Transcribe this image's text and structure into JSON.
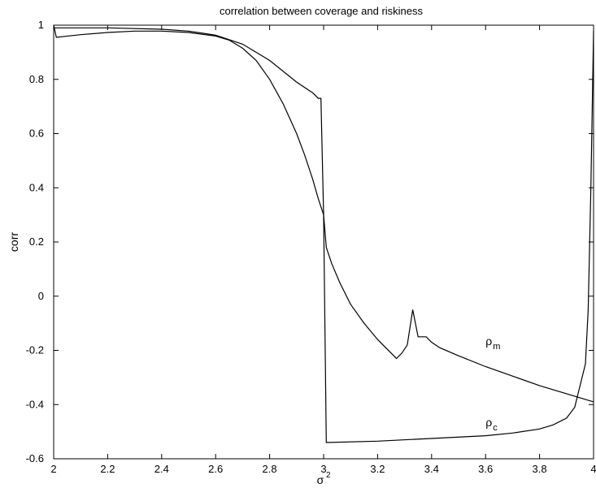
{
  "chart_data": {
    "type": "line",
    "title": "correlation between coverage and riskiness",
    "xlabel": "σ",
    "xlabel_superscript": "2",
    "ylabel": "corr",
    "xlim": [
      2,
      4
    ],
    "ylim": [
      -0.6,
      1
    ],
    "grid": false,
    "x_ticks": [
      "2",
      "2.2",
      "2.4",
      "2.6",
      "2.8",
      "3",
      "3.2",
      "3.4",
      "3.6",
      "3.8",
      "4"
    ],
    "y_ticks": [
      "1",
      "0.8",
      "0.6",
      "0.4",
      "0.2",
      "0",
      "-0.2",
      "-0.4",
      "-0.6"
    ],
    "series": [
      {
        "label": "ρ",
        "label_subscript": "m",
        "color": "#000000",
        "points": [
          [
            2.0,
            1.0
          ],
          [
            2.01,
            0.955
          ],
          [
            2.1,
            0.965
          ],
          [
            2.2,
            0.973
          ],
          [
            2.3,
            0.978
          ],
          [
            2.4,
            0.978
          ],
          [
            2.5,
            0.973
          ],
          [
            2.6,
            0.96
          ],
          [
            2.65,
            0.945
          ],
          [
            2.7,
            0.915
          ],
          [
            2.75,
            0.87
          ],
          [
            2.8,
            0.8
          ],
          [
            2.85,
            0.71
          ],
          [
            2.9,
            0.6
          ],
          [
            2.93,
            0.52
          ],
          [
            2.96,
            0.43
          ],
          [
            2.98,
            0.36
          ],
          [
            3.0,
            0.3
          ],
          [
            3.01,
            0.18
          ],
          [
            3.03,
            0.12
          ],
          [
            3.06,
            0.05
          ],
          [
            3.1,
            -0.03
          ],
          [
            3.15,
            -0.1
          ],
          [
            3.2,
            -0.16
          ],
          [
            3.22,
            -0.18
          ],
          [
            3.25,
            -0.21
          ],
          [
            3.27,
            -0.23
          ],
          [
            3.29,
            -0.21
          ],
          [
            3.31,
            -0.18
          ],
          [
            3.33,
            -0.05
          ],
          [
            3.35,
            -0.15
          ],
          [
            3.38,
            -0.15
          ],
          [
            3.4,
            -0.17
          ],
          [
            3.43,
            -0.19
          ],
          [
            3.5,
            -0.22
          ],
          [
            3.6,
            -0.26
          ],
          [
            3.7,
            -0.295
          ],
          [
            3.8,
            -0.33
          ],
          [
            3.9,
            -0.36
          ],
          [
            3.95,
            -0.375
          ],
          [
            4.0,
            -0.39
          ]
        ],
        "annotation_at": [
          3.6,
          -0.18
        ]
      },
      {
        "label": "ρ",
        "label_subscript": "c",
        "color": "#000000",
        "points": [
          [
            2.0,
            0.99
          ],
          [
            2.2,
            0.99
          ],
          [
            2.4,
            0.985
          ],
          [
            2.5,
            0.978
          ],
          [
            2.6,
            0.963
          ],
          [
            2.7,
            0.93
          ],
          [
            2.8,
            0.87
          ],
          [
            2.9,
            0.79
          ],
          [
            2.96,
            0.75
          ],
          [
            2.98,
            0.73
          ],
          [
            2.99,
            0.73
          ],
          [
            3.0,
            0.3
          ],
          [
            3.01,
            -0.54
          ],
          [
            3.2,
            -0.535
          ],
          [
            3.4,
            -0.525
          ],
          [
            3.6,
            -0.515
          ],
          [
            3.7,
            -0.505
          ],
          [
            3.8,
            -0.49
          ],
          [
            3.85,
            -0.475
          ],
          [
            3.9,
            -0.45
          ],
          [
            3.93,
            -0.41
          ],
          [
            3.95,
            -0.33
          ],
          [
            3.97,
            -0.25
          ],
          [
            3.98,
            -0.05
          ],
          [
            3.99,
            0.4
          ],
          [
            4.0,
            0.98
          ]
        ],
        "annotation_at": [
          3.6,
          -0.48
        ]
      }
    ]
  }
}
